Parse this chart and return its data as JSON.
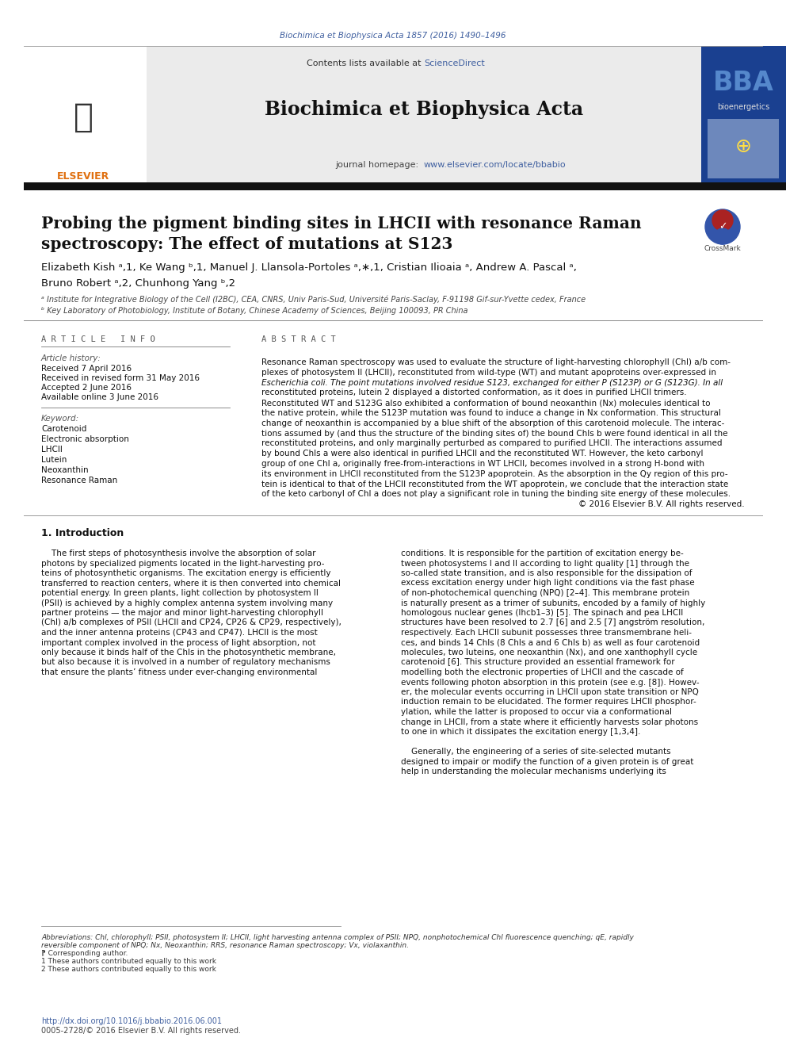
{
  "page_bg": "#ffffff",
  "journal_ref": "Biochimica et Biophysica Acta 1857 (2016) 1490–1496",
  "journal_ref_color": "#4060a0",
  "header_bg": "#ebebeb",
  "thick_bar_color": "#111111",
  "bba_bg": "#1a4090",
  "bba_text": "BBA",
  "bba_subtext": "bioenergetics",
  "elsevier_color": "#e07010",
  "sciencedirect_color": "#4060a0",
  "url_color": "#4060a0",
  "title_line1": "Probing the pigment binding sites in LHCII with resonance Raman",
  "title_line2": "spectroscopy: The effect of mutations at S123",
  "authors_line1": "Elizabeth Kish ᵃ,1, Ke Wang ᵇ,1, Manuel J. Llansola-Portoles ᵃ,∗,1, Cristian Ilioaia ᵃ, Andrew A. Pascal ᵃ,",
  "authors_line2": "Bruno Robert ᵃ,2, Chunhong Yang ᵇ,2",
  "affil_a": "ᵃ Institute for Integrative Biology of the Cell (I2BC), CEA, CNRS, Univ Paris-Sud, Université Paris-Saclay, F-91198 Gif-sur-Yvette cedex, France",
  "affil_b": "ᵇ Key Laboratory of Photobiology, Institute of Botany, Chinese Academy of Sciences, Beijing 100093, PR China",
  "art_history_label": "Article history:",
  "received1": "Received 7 April 2016",
  "received2": "Received in revised form 31 May 2016",
  "accepted": "Accepted 2 June 2016",
  "online": "Available online 3 June 2016",
  "kw_label": "Keyword:",
  "keywords": [
    "Carotenoid",
    "Electronic absorption",
    "LHCII",
    "Lutein",
    "Neoxanthin",
    "Resonance Raman"
  ],
  "abstract_lines": [
    "Resonance Raman spectroscopy was used to evaluate the structure of light-harvesting chlorophyll (Chl) a/b com-",
    "plexes of photosystem II (LHCII), reconstituted from wild-type (WT) and mutant apoproteins over-expressed in",
    "Escherichia coli. The point mutations involved residue S123, exchanged for either P (S123P) or G (S123G). In all",
    "reconstituted proteins, lutein 2 displayed a distorted conformation, as it does in purified LHCII trimers.",
    "Reconstituted WT and S123G also exhibited a conformation of bound neoxanthin (Nx) molecules identical to",
    "the native protein, while the S123P mutation was found to induce a change in Nx conformation. This structural",
    "change of neoxanthin is accompanied by a blue shift of the absorption of this carotenoid molecule. The interac-",
    "tions assumed by (and thus the structure of the binding sites of) the bound Chls b were found identical in all the",
    "reconstituted proteins, and only marginally perturbed as compared to purified LHCII. The interactions assumed",
    "by bound Chls a were also identical in purified LHCII and the reconstituted WT. However, the keto carbonyl",
    "group of one Chl a, originally free-from-interactions in WT LHCII, becomes involved in a strong H-bond with",
    "its environment in LHCII reconstituted from the S123P apoprotein. As the absorption in the Qy region of this pro-",
    "tein is identical to that of the LHCII reconstituted from the WT apoprotein, we conclude that the interaction state",
    "of the keto carbonyl of Chl a does not play a significant role in tuning the binding site energy of these molecules.",
    "© 2016 Elsevier B.V. All rights reserved."
  ],
  "abstract_italic_lines": [
    2
  ],
  "abstract_right_align_last": true,
  "sec1_title": "1. Introduction",
  "intro_left": [
    "    The first steps of photosynthesis involve the absorption of solar",
    "photons by specialized pigments located in the light-harvesting pro-",
    "teins of photosynthetic organisms. The excitation energy is efficiently",
    "transferred to reaction centers, where it is then converted into chemical",
    "potential energy. In green plants, light collection by photosystem II",
    "(PSII) is achieved by a highly complex antenna system involving many",
    "partner proteins — the major and minor light-harvesting chlorophyll",
    "(Chl) a/b complexes of PSII (LHCII and CP24, CP26 & CP29, respectively),",
    "and the inner antenna proteins (CP43 and CP47). LHCII is the most",
    "important complex involved in the process of light absorption, not",
    "only because it binds half of the Chls in the photosynthetic membrane,",
    "but also because it is involved in a number of regulatory mechanisms",
    "that ensure the plants’ fitness under ever-changing environmental"
  ],
  "intro_right": [
    "conditions. It is responsible for the partition of excitation energy be-",
    "tween photosystems I and II according to light quality [1] through the",
    "so-called state transition, and is also responsible for the dissipation of",
    "excess excitation energy under high light conditions via the fast phase",
    "of non-photochemical quenching (NPQ) [2–4]. This membrane protein",
    "is naturally present as a trimer of subunits, encoded by a family of highly",
    "homologous nuclear genes (lhcb1–3) [5]. The spinach and pea LHCII",
    "structures have been resolved to 2.7 [6] and 2.5 [7] angström resolution,",
    "respectively. Each LHCII subunit possesses three transmembrane heli-",
    "ces, and binds 14 Chls (8 Chls a and 6 Chls b) as well as four carotenoid",
    "molecules, two luteins, one neoxanthin (Nx), and one xanthophyll cycle",
    "carotenoid [6]. This structure provided an essential framework for",
    "modelling both the electronic properties of LHCII and the cascade of",
    "events following photon absorption in this protein (see e.g. [8]). Howev-",
    "er, the molecular events occurring in LHCII upon state transition or NPQ",
    "induction remain to be elucidated. The former requires LHCII phosphor-",
    "ylation, while the latter is proposed to occur via a conformational",
    "change in LHCII, from a state where it efficiently harvests solar photons",
    "to one in which it dissipates the excitation energy [1,3,4].",
    "",
    "    Generally, the engineering of a series of site-selected mutants",
    "designed to impair or modify the function of a given protein is of great",
    "help in understanding the molecular mechanisms underlying its"
  ],
  "footnote_abbrev": "Abbreviations: Chl, chlorophyll; PSII, photosystem II; LHCII, light harvesting antenna complex of PSII; NPQ, nonphotochemical Chl fluorescence quenching; qE, rapidly",
  "footnote_abbrev2": "reversible component of NPQ; Nx, Neoxanthin; RRS, resonance Raman spectroscopy; Vx, violaxanthin.",
  "footnote_star": "⁋ Corresponding author.",
  "footnote_1": "1 These authors contributed equally to this work",
  "footnote_2": "2 These authors contributed equally to this work",
  "doi": "http://dx.doi.org/10.1016/j.bbabio.2016.06.001",
  "issn": "0005-2728/© 2016 Elsevier B.V. All rights reserved."
}
